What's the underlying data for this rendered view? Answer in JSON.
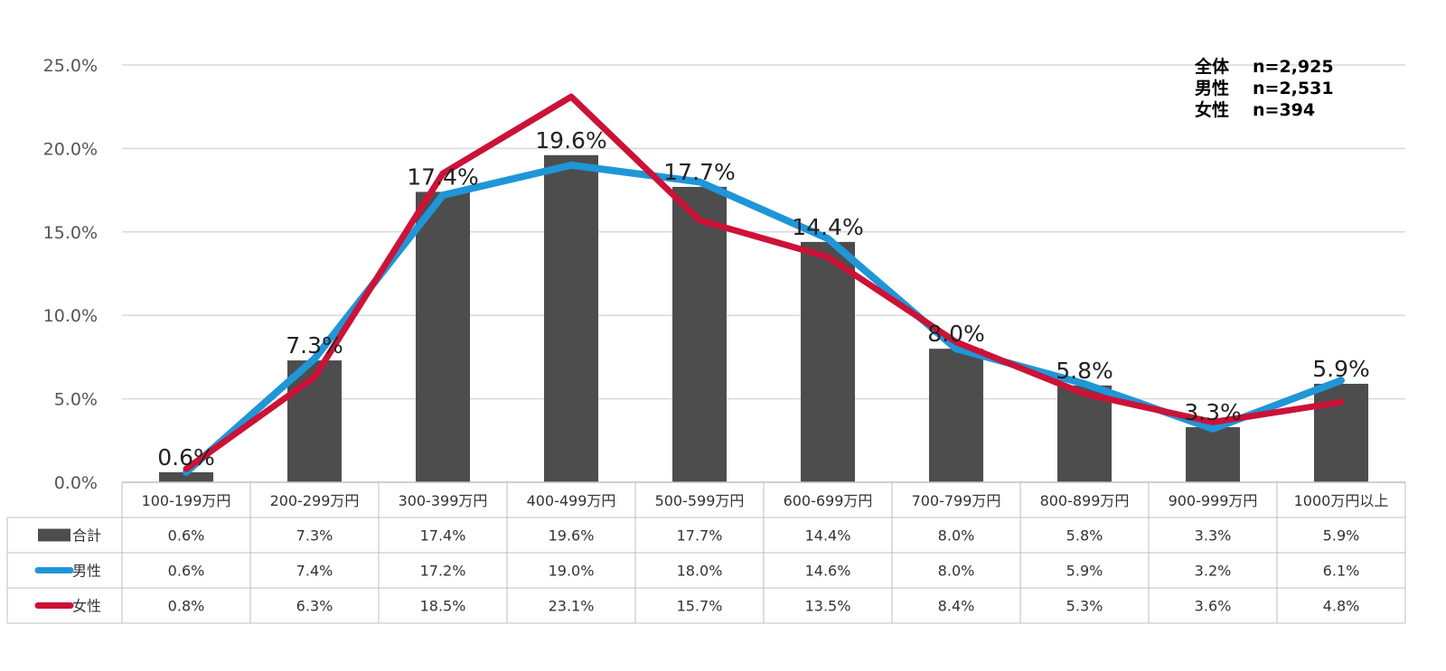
{
  "chart_data": {
    "type": "bar",
    "categories": [
      "100-199万円",
      "200-299万円",
      "300-399万円",
      "400-499万円",
      "500-599万円",
      "600-699万円",
      "700-799万円",
      "800-899万円",
      "900-999万円",
      "1000万円以上"
    ],
    "series": [
      {
        "name": "合計",
        "type": "bar",
        "color": "#4d4d4d",
        "values": [
          0.6,
          7.3,
          17.4,
          19.6,
          17.7,
          14.4,
          8.0,
          5.8,
          3.3,
          5.9
        ]
      },
      {
        "name": "男性",
        "type": "line",
        "color": "#1f96d8",
        "values": [
          0.6,
          7.4,
          17.2,
          19.0,
          18.0,
          14.6,
          8.0,
          5.9,
          3.2,
          6.1
        ]
      },
      {
        "name": "女性",
        "type": "line",
        "color": "#cc1237",
        "values": [
          0.8,
          6.3,
          18.5,
          23.1,
          15.7,
          13.5,
          8.4,
          5.3,
          3.6,
          4.8
        ]
      }
    ],
    "data_labels": [
      "0.6%",
      "7.3%",
      "17.4%",
      "19.6%",
      "17.7%",
      "14.4%",
      "8.0%",
      "5.8%",
      "3.3%",
      "5.9%"
    ],
    "table": [
      [
        "0.6%",
        "7.3%",
        "17.4%",
        "19.6%",
        "17.7%",
        "14.4%",
        "8.0%",
        "5.8%",
        "3.3%",
        "5.9%"
      ],
      [
        "0.6%",
        "7.4%",
        "17.2%",
        "19.0%",
        "18.0%",
        "14.6%",
        "8.0%",
        "5.9%",
        "3.2%",
        "6.1%"
      ],
      [
        "0.8%",
        "6.3%",
        "18.5%",
        "23.1%",
        "15.7%",
        "13.5%",
        "8.4%",
        "5.3%",
        "3.6%",
        "4.8%"
      ]
    ],
    "ylim": [
      0,
      25
    ],
    "yticks": [
      "0.0%",
      "5.0%",
      "10.0%",
      "15.0%",
      "20.0%",
      "25.0%"
    ],
    "grid": true,
    "legend_placement": "data-table-left"
  },
  "notes": [
    {
      "label": "全体",
      "value": "n=2,925"
    },
    {
      "label": "男性",
      "value": "n=2,531"
    },
    {
      "label": "女性",
      "value": "n=394"
    }
  ]
}
